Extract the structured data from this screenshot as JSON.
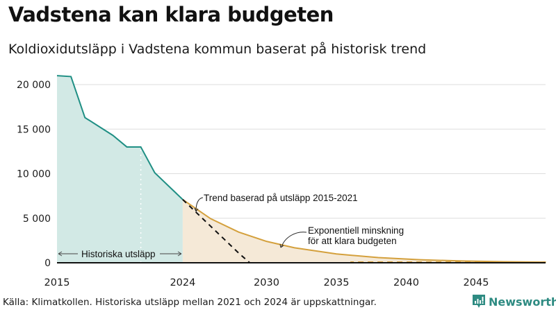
{
  "header": {
    "title": "Vadstena kan klara budgeten",
    "subtitle": "Koldioxidutsläpp i Vadstena kommun baserat på historisk trend"
  },
  "footer": {
    "source": "Källa: Klimatkollen. Historiska utsläpp mellan 2021 och 2024 är uppskattningar.",
    "brand": "Newsworthy",
    "brand_color": "#2e8b82"
  },
  "colors": {
    "historical_line": "#1f8f84",
    "historical_fill": "#d2e9e5",
    "budget_line": "#d4a03c",
    "budget_fill": "#f5e9d7",
    "trend_dash": "#111111",
    "grid": "#dddddd"
  },
  "chart_data": {
    "type": "area",
    "title": "Vadstena kan klara budgeten",
    "subtitle": "Koldioxidutsläpp i Vadstena kommun baserat på historisk trend",
    "xlabel": "",
    "ylabel": "",
    "x_ticks": [
      "2015",
      "2024",
      "2030",
      "2035",
      "2040",
      "2045"
    ],
    "y_ticks": [
      "0",
      "5 000",
      "10 000",
      "15 000",
      "20 000"
    ],
    "xlim": [
      2015,
      2050
    ],
    "ylim": [
      0,
      21500
    ],
    "grid": true,
    "series": [
      {
        "name": "Historiska utsläpp",
        "x": [
          2015,
          2016,
          2017,
          2018,
          2019,
          2020,
          2021,
          2022,
          2023,
          2024
        ],
        "values": [
          21000,
          20900,
          16300,
          15300,
          14300,
          13000,
          13000,
          10100,
          8600,
          7100
        ]
      },
      {
        "name": "Trend baserad på utsläpp 2015-2021",
        "style": "dashed",
        "x": [
          2024,
          2025,
          2026,
          2027,
          2028,
          2028.8
        ],
        "values": [
          7100,
          5600,
          4100,
          2600,
          1100,
          0
        ]
      },
      {
        "name": "Exponentiell minskning för att klara budgeten",
        "x": [
          2024,
          2026,
          2028,
          2030,
          2032,
          2035,
          2038,
          2041,
          2044,
          2047,
          2050
        ],
        "values": [
          7100,
          4950,
          3450,
          2400,
          1680,
          990,
          580,
          340,
          200,
          120,
          70
        ]
      }
    ],
    "annotations": [
      "Historiska utsläpp",
      "Trend baserad på utsläpp 2015-2021",
      "Exponentiell minskning för att klara budgeten"
    ],
    "estimated_range": "2021-2024"
  },
  "labels": {
    "historical": "Historiska utsläpp",
    "trend": "Trend baserad på utsläpp 2015-2021",
    "exp_line1": "Exponentiell minskning",
    "exp_line2": "för att klara budgeten"
  }
}
